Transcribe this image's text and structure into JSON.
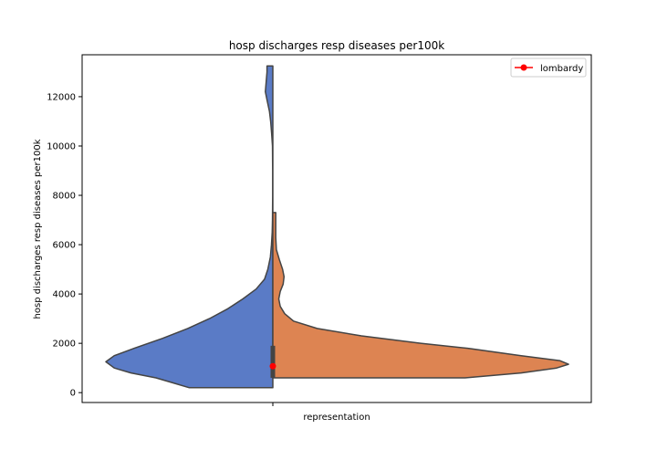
{
  "chart_data": {
    "type": "violin",
    "title": "hosp discharges resp diseases per100k",
    "xlabel": "representation",
    "ylabel": "hosp discharges resp diseases per100k",
    "ylim": [
      -400,
      13700
    ],
    "yticks": [
      0,
      2000,
      4000,
      6000,
      8000,
      10000,
      12000
    ],
    "grid": false,
    "legend": {
      "placement": "top-right",
      "entries": [
        {
          "label": "lombardy",
          "color": "#ff0000",
          "marker": "circle"
        }
      ]
    },
    "series": [
      {
        "side": "left",
        "color": "#5a7bc6",
        "profile": [
          [
            200,
            0.5
          ],
          [
            400,
            0.6
          ],
          [
            600,
            0.7
          ],
          [
            800,
            0.85
          ],
          [
            1000,
            0.95
          ],
          [
            1250,
            1.0
          ],
          [
            1500,
            0.95
          ],
          [
            1800,
            0.83
          ],
          [
            2200,
            0.66
          ],
          [
            2600,
            0.51
          ],
          [
            3000,
            0.38
          ],
          [
            3400,
            0.27
          ],
          [
            3800,
            0.18
          ],
          [
            4200,
            0.1
          ],
          [
            4600,
            0.05
          ],
          [
            5000,
            0.03
          ],
          [
            5500,
            0.015
          ],
          [
            6000,
            0.008
          ],
          [
            6500,
            0.004
          ],
          [
            7000,
            0.002
          ],
          [
            8000,
            0.001
          ],
          [
            9000,
            0.001
          ],
          [
            10000,
            0.002
          ],
          [
            10500,
            0.007
          ],
          [
            11000,
            0.013
          ],
          [
            11400,
            0.02
          ],
          [
            11800,
            0.033
          ],
          [
            12200,
            0.045
          ],
          [
            12600,
            0.04
          ],
          [
            13000,
            0.035
          ],
          [
            13250,
            0.035
          ]
        ]
      },
      {
        "side": "right",
        "color": "#dd8452",
        "profile": [
          [
            600,
            0.65
          ],
          [
            800,
            0.84
          ],
          [
            1000,
            0.96
          ],
          [
            1150,
            1.0
          ],
          [
            1300,
            0.97
          ],
          [
            1500,
            0.84
          ],
          [
            1800,
            0.66
          ],
          [
            2000,
            0.5
          ],
          [
            2300,
            0.3
          ],
          [
            2600,
            0.15
          ],
          [
            2900,
            0.07
          ],
          [
            3200,
            0.04
          ],
          [
            3500,
            0.025
          ],
          [
            3800,
            0.02
          ],
          [
            4100,
            0.025
          ],
          [
            4400,
            0.035
          ],
          [
            4700,
            0.038
          ],
          [
            5000,
            0.033
          ],
          [
            5400,
            0.022
          ],
          [
            5800,
            0.012
          ],
          [
            6300,
            0.01
          ],
          [
            6800,
            0.01
          ],
          [
            7300,
            0.01
          ]
        ]
      }
    ],
    "box": {
      "q1": 600,
      "q3": 1900,
      "median": 1100,
      "color": "#444444"
    },
    "marker": {
      "label": "lombardy",
      "value": 1070,
      "color": "#ff0000"
    }
  }
}
